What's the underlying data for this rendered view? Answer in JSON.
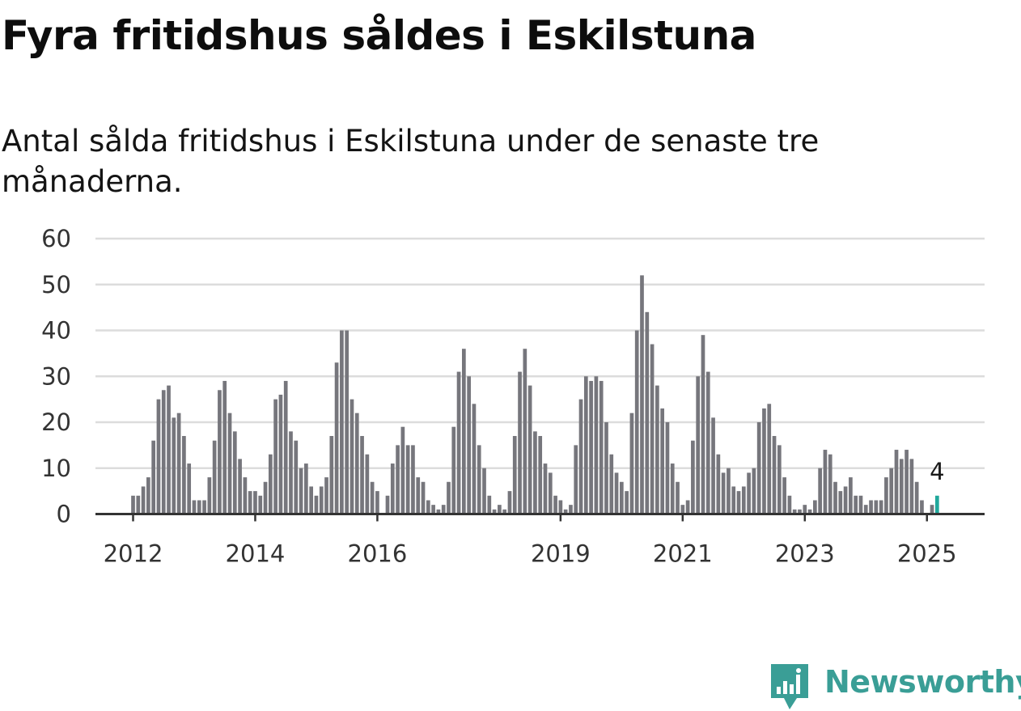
{
  "title": "Fyra fritidshus såldes i Eskilstuna",
  "subtitle": "Antal sålda fritidshus i Eskilstuna under de senaste tre månaderna.",
  "brand": {
    "name": "Newsworthy",
    "color": "#3a9e96",
    "icon": "bar-chart-icon"
  },
  "chart_data": {
    "type": "bar",
    "ylim": [
      0,
      60
    ],
    "yticks": [
      0,
      10,
      20,
      30,
      40,
      50,
      60
    ],
    "grid": true,
    "bar_color": "#76767c",
    "highlight_color": "#21a89c",
    "xtick_labels": [
      "2012",
      "2014",
      "2016",
      "2019",
      "2021",
      "2023",
      "2025"
    ],
    "xtick_months": [
      "2012-01",
      "2014-01",
      "2016-01",
      "2019-01",
      "2021-01",
      "2023-01",
      "2025-01"
    ],
    "annotation": "4",
    "highlight_month": "2025-03",
    "series": [
      {
        "values": [
          4,
          4,
          6,
          8,
          16,
          25,
          27,
          28,
          21,
          22,
          17,
          11,
          3,
          3,
          3,
          8,
          16,
          27,
          29,
          22,
          18,
          12,
          8,
          5,
          5,
          4,
          7,
          13,
          25,
          26,
          29,
          18,
          16,
          10,
          11,
          6,
          4,
          6,
          8,
          17,
          33,
          40,
          40,
          25,
          22,
          17,
          13,
          7,
          5,
          0,
          4,
          11,
          15,
          19,
          15,
          15,
          8,
          7,
          3,
          2,
          1,
          2,
          7,
          19,
          31,
          36,
          30,
          24,
          15,
          10,
          4,
          1,
          2,
          1,
          5,
          17,
          31,
          36,
          28,
          18,
          17,
          11,
          9,
          4,
          3,
          1,
          2,
          15,
          25,
          30,
          29,
          30,
          29,
          20,
          13,
          9,
          7,
          5,
          22,
          40,
          52,
          44,
          37,
          28,
          23,
          20,
          11,
          7,
          2,
          3,
          16,
          30,
          39,
          31,
          21,
          13,
          9,
          10,
          6,
          5,
          6,
          9,
          10,
          20,
          23,
          24,
          17,
          15,
          8,
          4,
          1,
          1,
          2,
          1,
          3,
          10,
          14,
          13,
          7,
          5,
          6,
          8,
          4,
          4,
          2,
          3,
          3,
          3,
          8,
          10,
          14,
          12,
          14,
          12,
          7,
          3,
          0,
          2,
          4
        ]
      }
    ],
    "start_month": "2012-01"
  }
}
